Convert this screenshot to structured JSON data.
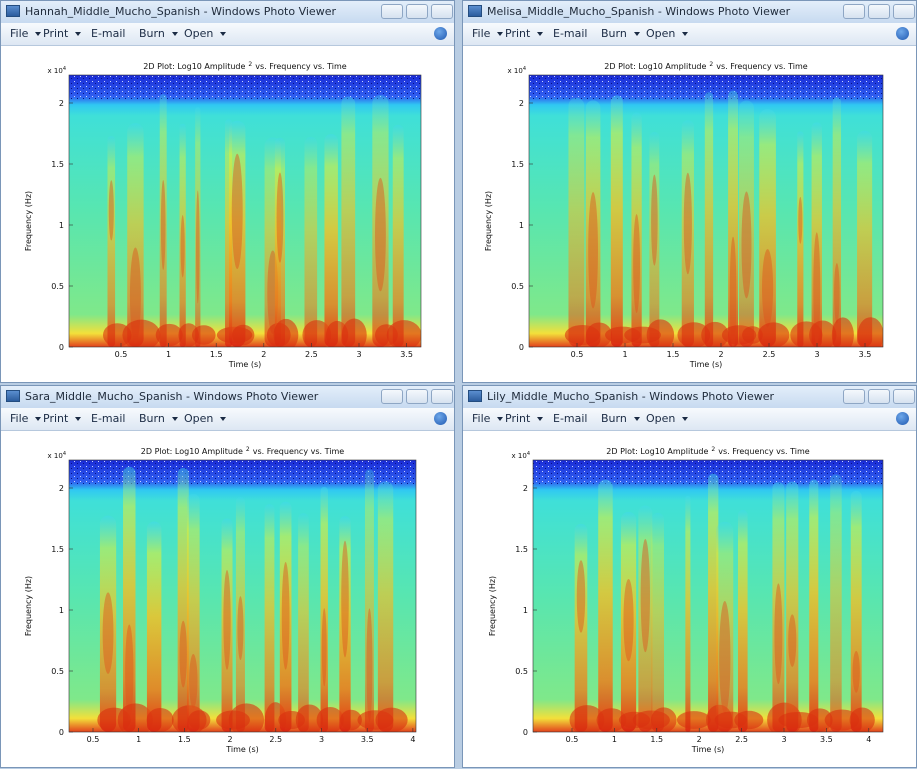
{
  "windows": [
    {
      "title": "Hannah_Middle_Mucho_Spanish - Windows Photo Viewer",
      "menu": [
        "File",
        "Print",
        "E-mail",
        "Burn",
        "Open"
      ],
      "plot": {
        "title": "2D Plot: Log10 Amplitude",
        "title_sup": "2",
        "title_rest": "vs. Frequency vs. Time",
        "y_exponent": "x 10",
        "y_exponent_sup": "4",
        "y_label": "Frequency (Hz)",
        "x_label": "Time (s)",
        "y_ticks": [
          "0",
          "0.5",
          "1",
          "1.5",
          "2"
        ],
        "x_ticks": [
          "0.5",
          "1",
          "1.5",
          "2",
          "2.5",
          "3",
          "3.5"
        ]
      }
    },
    {
      "title": "Melisa_Middle_Mucho_Spanish - Windows Photo Viewer",
      "menu": [
        "File",
        "Print",
        "E-mail",
        "Burn",
        "Open"
      ],
      "plot": {
        "title": "2D Plot: Log10 Amplitude",
        "title_sup": "2",
        "title_rest": "vs. Frequency vs. Time",
        "y_exponent": "x 10",
        "y_exponent_sup": "4",
        "y_label": "Frequency (Hz)",
        "x_label": "Time (s)",
        "y_ticks": [
          "0",
          "0.5",
          "1",
          "1.5",
          "2"
        ],
        "x_ticks": [
          "0.5",
          "1",
          "1.5",
          "2",
          "2.5",
          "3",
          "3.5"
        ]
      }
    },
    {
      "title": "Sara_Middle_Mucho_Spanish - Windows Photo Viewer",
      "menu": [
        "File",
        "Print",
        "E-mail",
        "Burn",
        "Open"
      ],
      "plot": {
        "title": "2D Plot: Log10 Amplitude",
        "title_sup": "2",
        "title_rest": "vs. Frequency vs. Time",
        "y_exponent": "x 10",
        "y_exponent_sup": "4",
        "y_label": "Frequency (Hz)",
        "x_label": "Time (s)",
        "y_ticks": [
          "0",
          "0.5",
          "1",
          "1.5",
          "2"
        ],
        "x_ticks": [
          "0.5",
          "1",
          "1.5",
          "2",
          "2.5",
          "3",
          "3.5",
          "4"
        ]
      }
    },
    {
      "title": "Lily_Middle_Mucho_Spanish - Windows Photo Viewer",
      "menu": [
        "File",
        "Print",
        "E-mail",
        "Burn",
        "Open"
      ],
      "plot": {
        "title": "2D Plot: Log10 Amplitude",
        "title_sup": "2",
        "title_rest": "vs. Frequency vs. Time",
        "y_exponent": "x 10",
        "y_exponent_sup": "4",
        "y_label": "Frequency (Hz)",
        "x_label": "Time (s)",
        "y_ticks": [
          "0",
          "0.5",
          "1",
          "1.5",
          "2"
        ],
        "x_ticks": [
          "0.5",
          "1",
          "1.5",
          "2",
          "2.5",
          "3",
          "3.5",
          "4"
        ]
      }
    }
  ]
}
